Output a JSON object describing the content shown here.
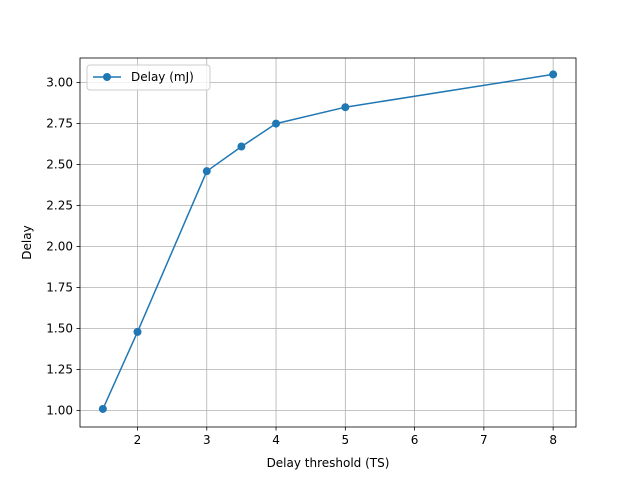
{
  "chart_data": {
    "type": "line",
    "title": "",
    "xlabel": "Delay threshold (TS)",
    "ylabel": "Delay",
    "xlim": [
      1.17,
      8.33
    ],
    "ylim": [
      0.9,
      3.15
    ],
    "x_ticks": [
      2,
      3,
      4,
      5,
      6,
      7,
      8
    ],
    "x_tick_labels": [
      "2",
      "3",
      "4",
      "5",
      "6",
      "7",
      "8"
    ],
    "y_ticks": [
      1.0,
      1.25,
      1.5,
      1.75,
      2.0,
      2.25,
      2.5,
      2.75,
      3.0
    ],
    "y_tick_labels": [
      "1.00",
      "1.25",
      "1.50",
      "1.75",
      "2.00",
      "2.25",
      "2.50",
      "2.75",
      "3.00"
    ],
    "grid": true,
    "legend_position": "top-left",
    "series": [
      {
        "name": "Delay (mJ)",
        "color": "#1f77b4",
        "marker": "circle",
        "x": [
          1.5,
          2,
          3,
          3.5,
          4,
          5,
          8
        ],
        "y": [
          1.01,
          1.48,
          2.46,
          2.61,
          2.75,
          2.85,
          3.05
        ]
      }
    ]
  }
}
